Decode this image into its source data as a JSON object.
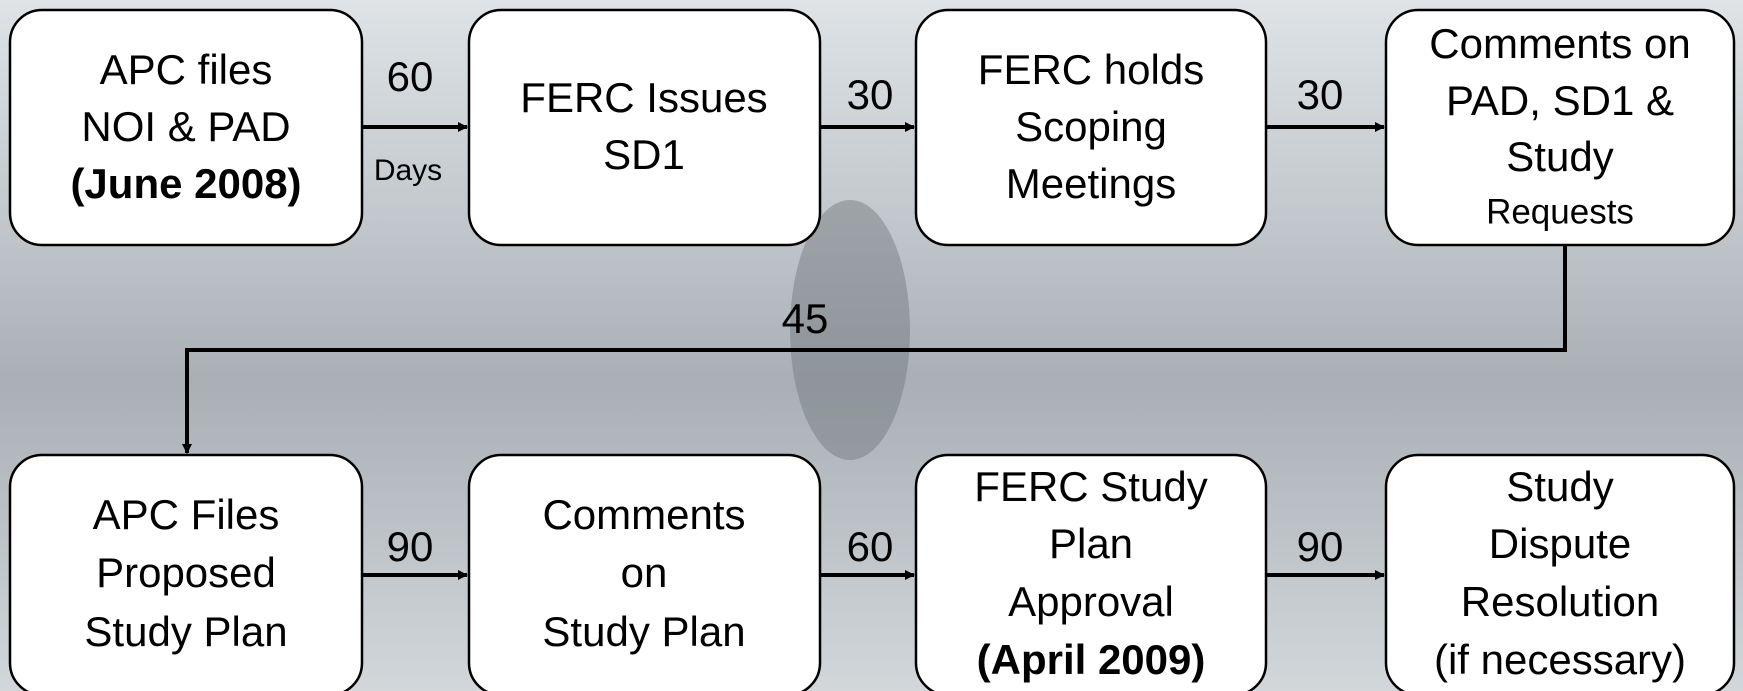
{
  "nodes": [
    {
      "lines": [
        "APC files",
        "NOI & PAD",
        "(June 2008)"
      ]
    },
    {
      "lines": [
        "FERC Issues",
        "SD1"
      ]
    },
    {
      "lines": [
        "FERC holds",
        "Scoping",
        "Meetings"
      ]
    },
    {
      "lines": [
        "Comments on",
        "PAD, SD1 &",
        "Study",
        "Requests"
      ]
    },
    {
      "lines": [
        "APC Files",
        "Proposed",
        "Study Plan"
      ]
    },
    {
      "lines": [
        "Comments",
        "on",
        "Study Plan"
      ]
    },
    {
      "lines": [
        "FERC Study",
        "Plan",
        "Approval",
        "(April 2009)"
      ]
    },
    {
      "lines": [
        "Study",
        "Dispute",
        "Resolution",
        "(if necessary)"
      ]
    }
  ],
  "edges": [
    {
      "label": 60,
      "unit": "Days"
    },
    {
      "label": 30
    },
    {
      "label": 30
    },
    {
      "label": 45
    },
    {
      "label": 90
    },
    {
      "label": 60
    },
    {
      "label": 90
    }
  ]
}
